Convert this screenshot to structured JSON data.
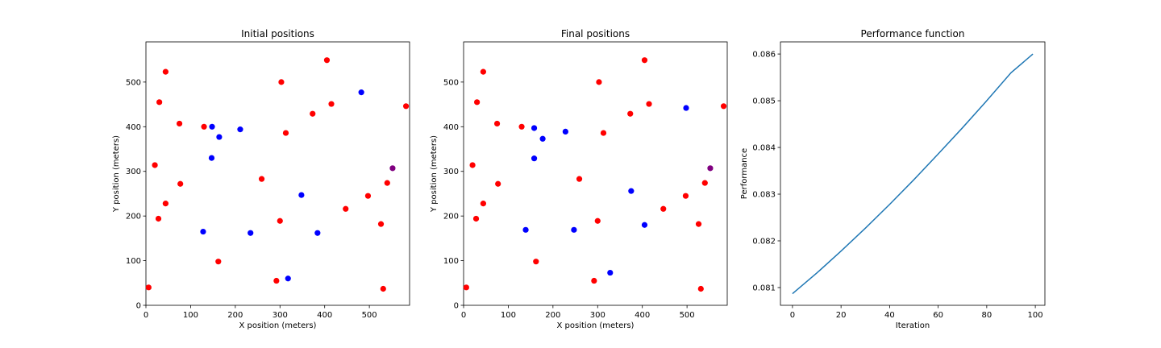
{
  "chart_data": [
    {
      "type": "scatter",
      "title": "Initial positions",
      "xlabel": "X position (meters)",
      "ylabel": "Y position (meters)",
      "xlim": [
        0,
        590
      ],
      "ylim": [
        0,
        590
      ],
      "xticks": [
        0,
        100,
        200,
        300,
        400,
        500
      ],
      "yticks": [
        0,
        100,
        200,
        300,
        400,
        500
      ],
      "grid": false,
      "series": [
        {
          "color": "#ff0000",
          "points": [
            [
              44,
              523
            ],
            [
              30,
              455
            ],
            [
              75,
              407
            ],
            [
              20,
              314
            ],
            [
              44,
              228
            ],
            [
              28,
              194
            ],
            [
              77,
              272
            ],
            [
              130,
              400
            ],
            [
              162,
              98
            ],
            [
              6,
              40
            ],
            [
              303,
              500
            ],
            [
              313,
              386
            ],
            [
              373,
              429
            ],
            [
              405,
              549
            ],
            [
              415,
              451
            ],
            [
              259,
              283
            ],
            [
              300,
              189
            ],
            [
              292,
              55
            ],
            [
              447,
              216
            ],
            [
              497,
              245
            ],
            [
              526,
              182
            ],
            [
              531,
              37
            ],
            [
              540,
              274
            ],
            [
              582,
              446
            ]
          ]
        },
        {
          "color": "#0000ff",
          "points": [
            [
              148,
              400
            ],
            [
              164,
              377
            ],
            [
              147,
              330
            ],
            [
              211,
              394
            ],
            [
              128,
              165
            ],
            [
              234,
              162
            ],
            [
              348,
              247
            ],
            [
              384,
              162
            ],
            [
              318,
              60
            ],
            [
              482,
              477
            ]
          ]
        },
        {
          "color": "#800080",
          "points": [
            [
              552,
              307
            ]
          ]
        }
      ]
    },
    {
      "type": "scatter",
      "title": "Final positions",
      "xlabel": "X position (meters)",
      "ylabel": "Y position (meters)",
      "xlim": [
        0,
        590
      ],
      "ylim": [
        0,
        590
      ],
      "xticks": [
        0,
        100,
        200,
        300,
        400,
        500
      ],
      "yticks": [
        0,
        100,
        200,
        300,
        400,
        500
      ],
      "grid": false,
      "series": [
        {
          "color": "#ff0000",
          "points": [
            [
              44,
              523
            ],
            [
              30,
              455
            ],
            [
              75,
              407
            ],
            [
              20,
              314
            ],
            [
              44,
              228
            ],
            [
              28,
              194
            ],
            [
              77,
              272
            ],
            [
              130,
              400
            ],
            [
              162,
              98
            ],
            [
              6,
              40
            ],
            [
              303,
              500
            ],
            [
              313,
              386
            ],
            [
              373,
              429
            ],
            [
              405,
              549
            ],
            [
              415,
              451
            ],
            [
              259,
              283
            ],
            [
              300,
              189
            ],
            [
              292,
              55
            ],
            [
              447,
              216
            ],
            [
              497,
              245
            ],
            [
              526,
              182
            ],
            [
              531,
              37
            ],
            [
              540,
              274
            ],
            [
              582,
              446
            ]
          ]
        },
        {
          "color": "#0000ff",
          "points": [
            [
              158,
              397
            ],
            [
              177,
              373
            ],
            [
              158,
              329
            ],
            [
              228,
              389
            ],
            [
              139,
              169
            ],
            [
              247,
              169
            ],
            [
              375,
              256
            ],
            [
              405,
              180
            ],
            [
              328,
              73
            ],
            [
              498,
              442
            ]
          ]
        },
        {
          "color": "#800080",
          "points": [
            [
              552,
              307
            ]
          ]
        }
      ]
    },
    {
      "type": "line",
      "title": "Performance function",
      "xlabel": "Iteration",
      "ylabel": "Performance",
      "xlim": [
        -4.95,
        103.95
      ],
      "ylim": [
        0.08062,
        0.08626
      ],
      "xticks": [
        0,
        20,
        40,
        60,
        80,
        100
      ],
      "yticks": [
        0.081,
        0.082,
        0.083,
        0.084,
        0.085,
        0.086
      ],
      "ytick_labels": [
        "0.081",
        "0.082",
        "0.083",
        "0.084",
        "0.085",
        "0.086"
      ],
      "grid": false,
      "series": [
        {
          "color": "#1f77b4",
          "x": [
            0,
            10,
            20,
            30,
            40,
            50,
            60,
            70,
            80,
            90,
            99
          ],
          "y": [
            0.08087,
            0.08131,
            0.08178,
            0.08227,
            0.08278,
            0.08331,
            0.08386,
            0.08442,
            0.085,
            0.0856,
            0.086
          ]
        }
      ]
    }
  ]
}
